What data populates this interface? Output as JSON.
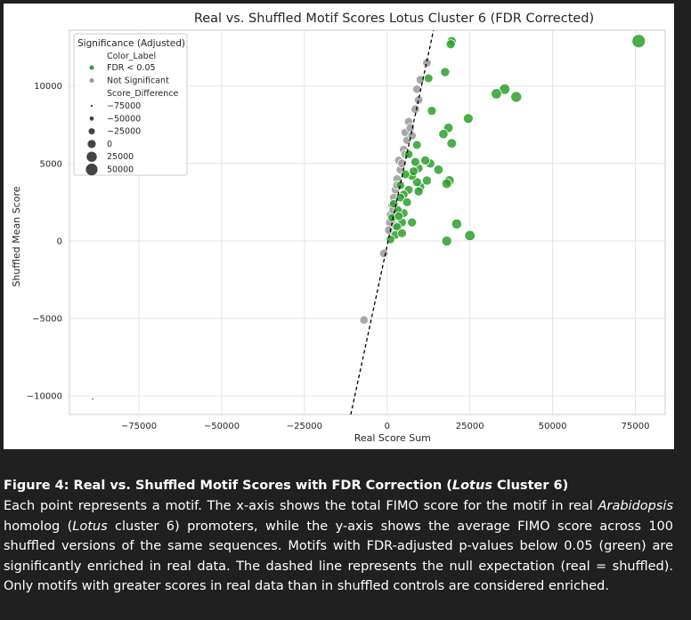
{
  "chart_data": {
    "type": "scatter",
    "title": "Real vs. Shuffled Motif Scores Lotus Cluster 6 (FDR Corrected)",
    "xlabel": "Real Score Sum",
    "ylabel": "Shuffled Mean Score",
    "xlim": [
      -96000,
      84000
    ],
    "ylim": [
      -11200,
      13600
    ],
    "xticks": [
      -75000,
      -50000,
      -25000,
      0,
      25000,
      50000,
      75000
    ],
    "xtick_labels": [
      "−75000",
      "−50000",
      "−25000",
      "0",
      "25000",
      "50000",
      "75000"
    ],
    "yticks": [
      -10000,
      -5000,
      0,
      5000,
      10000
    ],
    "ytick_labels": [
      "−10000",
      "−5000",
      "0",
      "5000",
      "10000"
    ],
    "grid": true,
    "reference_line": {
      "style": "dashed",
      "color": "#000000",
      "points": [
        [
          -11000,
          -11200
        ],
        [
          14000,
          13600
        ]
      ]
    },
    "legend": {
      "placement": "top-left",
      "title": "Significance (Adjusted)",
      "hue_title": "Color_Label",
      "hue_entries": [
        {
          "label": "FDR < 0.05",
          "color": "#2ca02c"
        },
        {
          "label": "Not Significant",
          "color": "#999999"
        }
      ],
      "size_title": "Score_Difference",
      "size_entries": [
        {
          "label": "−75000",
          "value": -75000
        },
        {
          "label": "−50000",
          "value": -50000
        },
        {
          "label": "−25000",
          "value": -25000
        },
        {
          "label": "0",
          "value": 0
        },
        {
          "label": "25000",
          "value": 25000
        },
        {
          "label": "50000",
          "value": 50000
        }
      ]
    },
    "colors": {
      "significant": "#2ca02c",
      "not_significant": "#999999"
    },
    "series": [
      {
        "name": "FDR < 0.05",
        "color": "#2ca02c",
        "points": [
          [
            76000,
            12900
          ],
          [
            19500,
            12900
          ],
          [
            19200,
            12700
          ],
          [
            17500,
            10900
          ],
          [
            12500,
            10500
          ],
          [
            35500,
            9800
          ],
          [
            33000,
            9500
          ],
          [
            39000,
            9300
          ],
          [
            13500,
            8400
          ],
          [
            24500,
            7900
          ],
          [
            18500,
            7300
          ],
          [
            17000,
            6900
          ],
          [
            19500,
            6300
          ],
          [
            9000,
            6200
          ],
          [
            15500,
            4600
          ],
          [
            13000,
            5000
          ],
          [
            11500,
            5200
          ],
          [
            9500,
            4700
          ],
          [
            8500,
            5100
          ],
          [
            6500,
            5600
          ],
          [
            18800,
            3900
          ],
          [
            18000,
            3700
          ],
          [
            10000,
            3500
          ],
          [
            9000,
            3800
          ],
          [
            7500,
            4200
          ],
          [
            5500,
            4300
          ],
          [
            6500,
            3300
          ],
          [
            5000,
            3000
          ],
          [
            4000,
            2800
          ],
          [
            5000,
            1800
          ],
          [
            4500,
            1200
          ],
          [
            3000,
            900
          ],
          [
            2500,
            400
          ],
          [
            1000,
            100
          ],
          [
            21000,
            1100
          ],
          [
            25000,
            350
          ],
          [
            18000,
            0
          ],
          [
            7500,
            1200
          ],
          [
            4000,
            3600
          ],
          [
            6000,
            2500
          ],
          [
            3200,
            2000
          ],
          [
            1500,
            1500
          ],
          [
            8000,
            4500
          ],
          [
            2000,
            2400
          ],
          [
            3500,
            1600
          ],
          [
            9500,
            3200
          ],
          [
            12000,
            3900
          ],
          [
            4500,
            500
          ]
        ]
      },
      {
        "name": "Not Significant",
        "color": "#999999",
        "points": [
          [
            -89000,
            -10200
          ],
          [
            -7000,
            -5100
          ],
          [
            -1000,
            -800
          ],
          [
            12000,
            11500
          ],
          [
            10000,
            10400
          ],
          [
            9000,
            9800
          ],
          [
            9500,
            9100
          ],
          [
            8500,
            8500
          ],
          [
            6500,
            7700
          ],
          [
            5500,
            7000
          ],
          [
            6000,
            6500
          ],
          [
            5000,
            5900
          ],
          [
            5500,
            5600
          ],
          [
            3500,
            5200
          ],
          [
            4000,
            4600
          ],
          [
            3000,
            4000
          ],
          [
            2500,
            3300
          ],
          [
            2000,
            2800
          ],
          [
            1500,
            2300
          ],
          [
            1000,
            1700
          ],
          [
            800,
            1200
          ],
          [
            500,
            700
          ],
          [
            7000,
            7300
          ],
          [
            4500,
            5000
          ],
          [
            3000,
            3600
          ],
          [
            1800,
            2000
          ],
          [
            7500,
            6800
          ],
          [
            2500,
            1000
          ]
        ]
      }
    ]
  },
  "caption": {
    "title_html": "Figure 4: Real vs. Shuffled Motif Scores with FDR Correction (<i>Lotus</i> Cluster 6)",
    "body_html": "Each point represents a motif. The x-axis shows the total FIMO score for the motif in real <i>Arabidopsis</i> homolog (<i>Lotus</i> cluster 6) promoters, while the y-axis shows the average FIMO score across 100 shuffled versions of the same sequences. Motifs with FDR-adjusted p-values below 0.05 (green) are significantly enriched in real data. The dashed line represents the null expectation (real = shuffled). Only motifs with greater scores in real data than in shuffled controls are considered enriched."
  }
}
